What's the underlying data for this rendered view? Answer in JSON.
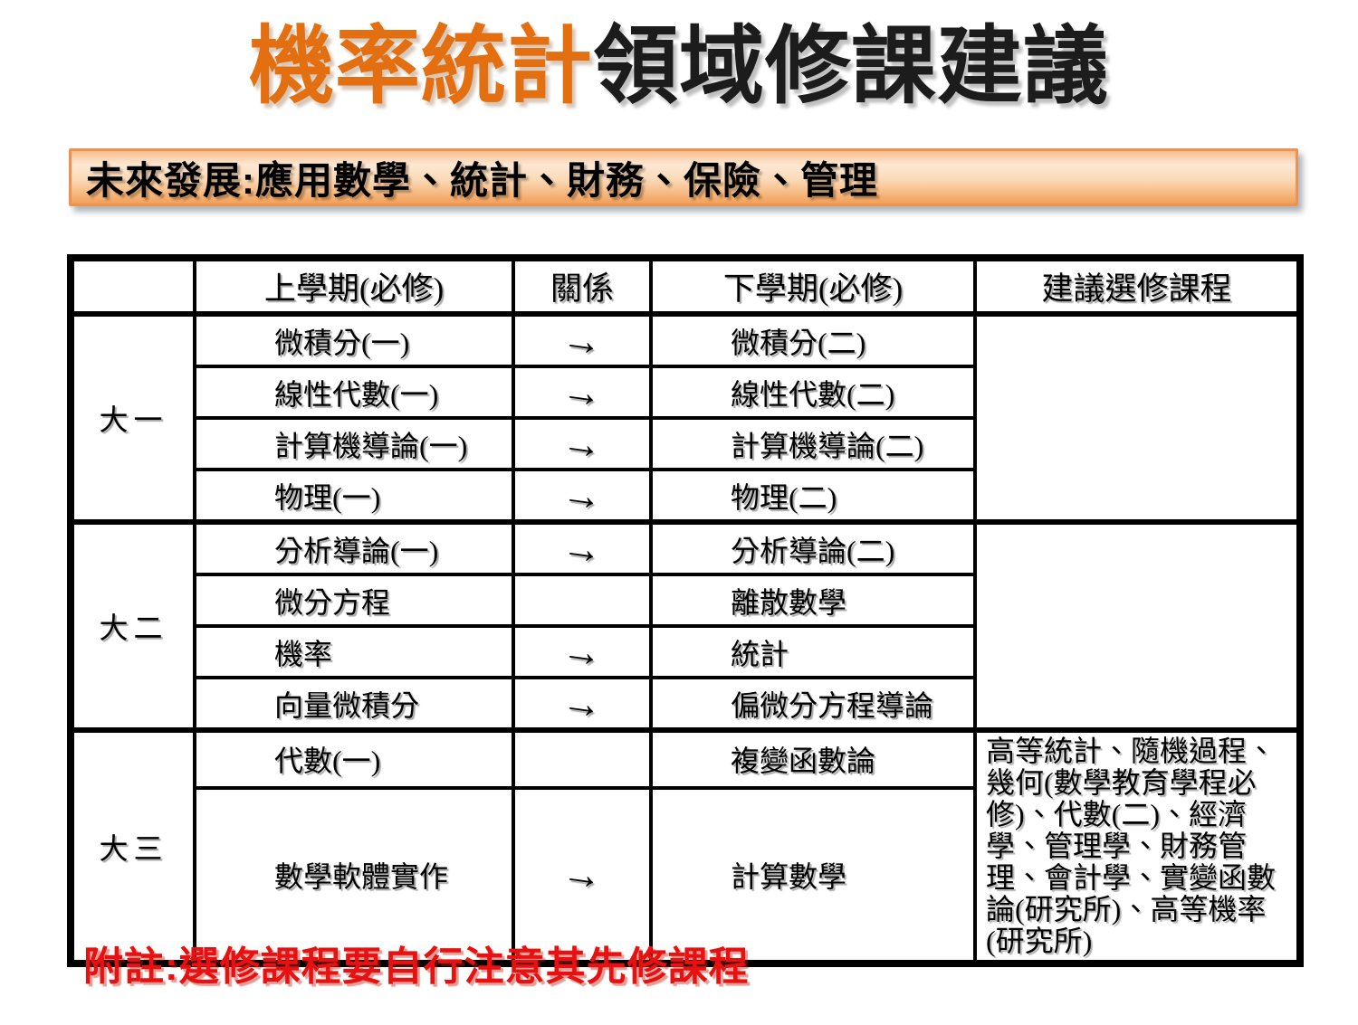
{
  "title": {
    "highlight": "機率統計",
    "rest": "領域修課建議"
  },
  "banner": {
    "text": "未來發展:應用數學、統計、財務、保險、管理"
  },
  "table": {
    "headers": {
      "year": "",
      "first_semester": "上學期(必修)",
      "relation": "關係",
      "second_semester": "下學期(必修)",
      "electives": "建議選修課程"
    },
    "arrow_icon": "→",
    "groups": [
      {
        "year": "大一",
        "electives": "",
        "rows": [
          {
            "first": "微積分(一)",
            "arrow": "→",
            "second": "微積分(二)"
          },
          {
            "first": "線性代數(一)",
            "arrow": "→",
            "second": "線性代數(二)"
          },
          {
            "first": "計算機導論(一)",
            "arrow": "→",
            "second": "計算機導論(二)"
          },
          {
            "first": "物理(一)",
            "arrow": "→",
            "second": "物理(二)"
          }
        ]
      },
      {
        "year": "大二",
        "electives": "",
        "rows": [
          {
            "first": "分析導論(一)",
            "arrow": "→",
            "second": "分析導論(二)"
          },
          {
            "first": "微分方程",
            "arrow": "",
            "second": "離散數學"
          },
          {
            "first": "機率",
            "arrow": "→",
            "second": "統計"
          },
          {
            "first": "向量微積分",
            "arrow": "→",
            "second": "偏微分方程導論"
          }
        ]
      },
      {
        "year": "大三",
        "electives": "高等統計、隨機過程、幾何(數學教育學程必修)、代數(二)、經濟學、管理學、財務管理、會計學、實變函數論(研究所)、高等機率(研究所)",
        "rows": [
          {
            "first": "代數(一)",
            "arrow": "",
            "second": "複變函數論"
          },
          {
            "first": "數學軟體實作",
            "arrow": "→",
            "second": "計算數學"
          }
        ]
      }
    ]
  },
  "note": {
    "text": "附註:選修課程要自行注意其先修課程"
  },
  "colors": {
    "title_orange": "#e36f10",
    "title_dark": "#1c1c1c",
    "banner_border": "#ec9351",
    "banner_gradient_top": "#f7bd8b",
    "banner_gradient_light": "#fde8d4",
    "banner_gradient_bottom": "#f1a058",
    "table_border": "#000000",
    "note_red": "#e81010"
  }
}
